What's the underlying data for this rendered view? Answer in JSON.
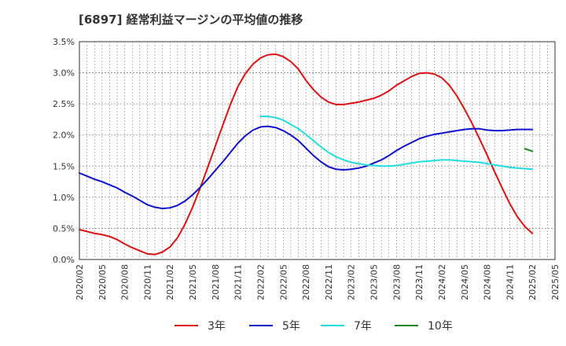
{
  "title": "[6897]  経常利益マージンの平均値の推移",
  "chart_data": {
    "type": "line",
    "title": "[6897]  経常利益マージンの平均値の推移",
    "xlabel": "",
    "ylabel": "",
    "ylim": [
      0,
      3.5
    ],
    "yticks": [
      "0.0%",
      "0.5%",
      "1.0%",
      "1.5%",
      "2.0%",
      "2.5%",
      "3.0%",
      "3.5%"
    ],
    "xticks": [
      "2020/02",
      "2020/05",
      "2020/08",
      "2020/11",
      "2021/02",
      "2021/05",
      "2021/08",
      "2021/11",
      "2022/02",
      "2022/05",
      "2022/08",
      "2022/11",
      "2023/02",
      "2023/05",
      "2023/08",
      "2023/11",
      "2024/02",
      "2024/05",
      "2024/08",
      "2024/11",
      "2025/02",
      "2025/05"
    ],
    "grid": true,
    "legend_position": "bottom",
    "x": [
      "2020/02",
      "2020/03",
      "2020/04",
      "2020/05",
      "2020/06",
      "2020/07",
      "2020/08",
      "2020/09",
      "2020/10",
      "2020/11",
      "2020/12",
      "2021/01",
      "2021/02",
      "2021/03",
      "2021/04",
      "2021/05",
      "2021/06",
      "2021/07",
      "2021/08",
      "2021/09",
      "2021/10",
      "2021/11",
      "2021/12",
      "2022/01",
      "2022/02",
      "2022/03",
      "2022/04",
      "2022/05",
      "2022/06",
      "2022/07",
      "2022/08",
      "2022/09",
      "2022/10",
      "2022/11",
      "2022/12",
      "2023/01",
      "2023/02",
      "2023/03",
      "2023/04",
      "2023/05",
      "2023/06",
      "2023/07",
      "2023/08",
      "2023/09",
      "2023/10",
      "2023/11",
      "2023/12",
      "2024/01",
      "2024/02",
      "2024/03",
      "2024/04",
      "2024/05",
      "2024/06",
      "2024/07",
      "2024/08",
      "2024/09",
      "2024/10",
      "2024/11",
      "2024/12",
      "2025/01",
      "2025/02"
    ],
    "series": [
      {
        "name": "3年",
        "color": "#dd1111",
        "values": [
          0.48,
          0.45,
          0.42,
          0.4,
          0.37,
          0.32,
          0.25,
          0.19,
          0.14,
          0.09,
          0.08,
          0.12,
          0.2,
          0.35,
          0.57,
          0.84,
          1.15,
          1.48,
          1.82,
          2.16,
          2.49,
          2.78,
          2.99,
          3.14,
          3.24,
          3.29,
          3.3,
          3.26,
          3.18,
          3.06,
          2.88,
          2.73,
          2.61,
          2.53,
          2.49,
          2.49,
          2.51,
          2.53,
          2.56,
          2.59,
          2.64,
          2.71,
          2.8,
          2.87,
          2.94,
          2.99,
          3.0,
          2.98,
          2.92,
          2.8,
          2.63,
          2.42,
          2.19,
          1.94,
          1.68,
          1.41,
          1.15,
          0.9,
          0.69,
          0.53,
          0.42
        ]
      },
      {
        "name": "5年",
        "color": "#1111cc",
        "values": [
          1.39,
          1.34,
          1.29,
          1.25,
          1.2,
          1.15,
          1.08,
          1.02,
          0.95,
          0.88,
          0.84,
          0.82,
          0.83,
          0.87,
          0.94,
          1.04,
          1.16,
          1.29,
          1.43,
          1.57,
          1.72,
          1.87,
          1.99,
          2.08,
          2.13,
          2.14,
          2.12,
          2.07,
          2.0,
          1.91,
          1.79,
          1.67,
          1.57,
          1.49,
          1.45,
          1.44,
          1.45,
          1.47,
          1.5,
          1.55,
          1.6,
          1.67,
          1.75,
          1.82,
          1.88,
          1.94,
          1.98,
          2.01,
          2.03,
          2.05,
          2.07,
          2.09,
          2.1,
          2.1,
          2.08,
          2.07,
          2.07,
          2.08,
          2.09,
          2.09,
          2.09
        ]
      },
      {
        "name": "7年",
        "color": "#22dddd",
        "values": [
          null,
          null,
          null,
          null,
          null,
          null,
          null,
          null,
          null,
          null,
          null,
          null,
          null,
          null,
          null,
          null,
          null,
          null,
          null,
          null,
          null,
          null,
          null,
          null,
          2.3,
          2.3,
          2.28,
          2.24,
          2.17,
          2.1,
          2.01,
          1.91,
          1.81,
          1.72,
          1.65,
          1.6,
          1.56,
          1.54,
          1.52,
          1.51,
          1.5,
          1.5,
          1.51,
          1.53,
          1.55,
          1.57,
          1.58,
          1.59,
          1.6,
          1.6,
          1.59,
          1.58,
          1.57,
          1.56,
          1.54,
          1.52,
          1.5,
          1.48,
          1.47,
          1.46,
          1.45
        ]
      },
      {
        "name": "10年",
        "color": "#228822",
        "values": [
          null,
          null,
          null,
          null,
          null,
          null,
          null,
          null,
          null,
          null,
          null,
          null,
          null,
          null,
          null,
          null,
          null,
          null,
          null,
          null,
          null,
          null,
          null,
          null,
          null,
          null,
          null,
          null,
          null,
          null,
          null,
          null,
          null,
          null,
          null,
          null,
          null,
          null,
          null,
          null,
          null,
          null,
          null,
          null,
          null,
          null,
          null,
          null,
          null,
          null,
          null,
          null,
          null,
          null,
          null,
          null,
          null,
          null,
          null,
          1.78,
          1.74
        ]
      }
    ]
  }
}
